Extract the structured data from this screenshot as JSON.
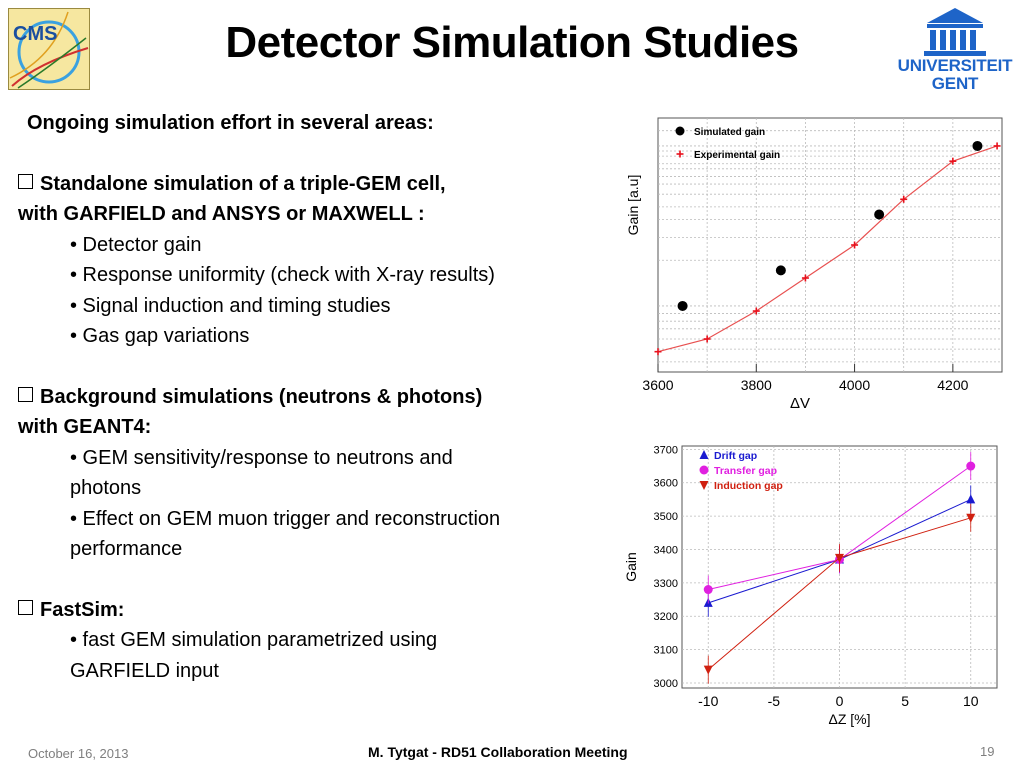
{
  "header": {
    "title": "Detector Simulation Studies",
    "cms_logo_text": "CMS",
    "ugent_line1": "UNIVERSITEIT",
    "ugent_line2": "GENT"
  },
  "body": {
    "intro": "Ongoing simulation effort in several areas:",
    "s1_line1": "Standalone simulation of a triple-GEM cell,",
    "s1_line2": "with GARFIELD and ANSYS or MAXWELL  :",
    "s1_items": [
      "• Detector gain",
      "• Response uniformity (check with X-ray results)",
      "• Signal induction and timing studies",
      "• Gas gap variations"
    ],
    "s2_line1": "Background simulations (neutrons & photons)",
    "s2_line2": "with GEANT4:",
    "s2_item1a": "• GEM sensitivity/response to neutrons and",
    "s2_item1b": "photons",
    "s2_item2a": "• Effect on GEM muon trigger and reconstruction",
    "s2_item2b": "performance",
    "s3_line1": "FastSim:",
    "s3_item1a": "• fast GEM simulation parametrized using",
    "s3_item1b": "GARFIELD input"
  },
  "footer": {
    "date": "October 16, 2013",
    "center": "M. Tytgat - RD51 Collaboration Meeting",
    "page": "19"
  },
  "colors": {
    "simulated": "#000000",
    "experimental": "#e8101c",
    "fit": "#e85050",
    "drift": "#1a1ad0",
    "transfer": "#e020e0",
    "induction": "#d02010"
  },
  "chart_data": [
    {
      "type": "scatter",
      "xlabel": "ΔV",
      "ylabel": "Gain [a.u]",
      "xlim": [
        3600,
        4300
      ],
      "x_ticks": [
        "3600",
        "3800",
        "4000",
        "4200"
      ],
      "y_tick_labels_shown": false,
      "log_scale_y": true,
      "grid": true,
      "legend": "top-left",
      "series": [
        {
          "name": "Simulated gain",
          "marker": "circle",
          "x": [
            3650,
            3850,
            4050,
            4250
          ],
          "y": [
            0.26,
            0.4,
            0.62,
            0.89
          ]
        },
        {
          "name": "Experimental gain",
          "marker": "cross",
          "x": [
            3600,
            3700,
            3800,
            3900,
            4000,
            4100,
            4200,
            4290
          ],
          "y": [
            0.08,
            0.13,
            0.24,
            0.37,
            0.5,
            0.68,
            0.83,
            0.89
          ]
        }
      ]
    },
    {
      "type": "line",
      "xlabel": "ΔZ [%]",
      "ylabel": "Gain",
      "xlim": [
        -12,
        12
      ],
      "ylim": [
        2985,
        3710
      ],
      "x_ticks": [
        "-10",
        "-5",
        "0",
        "5",
        "10"
      ],
      "y_ticks": [
        "3000",
        "3100",
        "3200",
        "3300",
        "3400",
        "3500",
        "3600",
        "3700"
      ],
      "grid": true,
      "legend": "top-left",
      "x": [
        -10,
        0,
        10
      ],
      "series": [
        {
          "name": "Drift gap",
          "marker": "triangle-up",
          "values": [
            3240,
            3370,
            3550
          ]
        },
        {
          "name": "Transfer gap",
          "marker": "circle",
          "values": [
            3280,
            3370,
            3650
          ]
        },
        {
          "name": "Induction gap",
          "marker": "triangle-down",
          "values": [
            3040,
            3375,
            3495
          ]
        }
      ]
    }
  ]
}
